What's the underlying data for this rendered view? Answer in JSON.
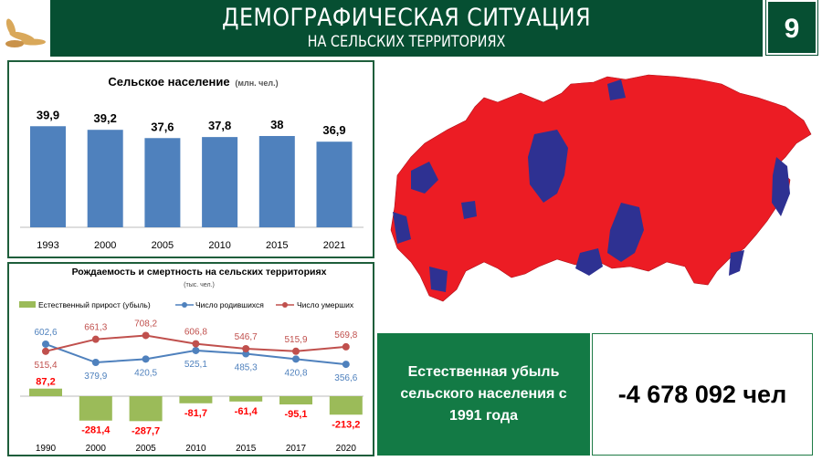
{
  "header": {
    "title": "ДЕМОГРАФИЧЕСКАЯ СИТУАЦИЯ",
    "subtitle": "НА СЕЛЬСКИХ ТЕРРИТОРИЯХ",
    "page_number": "9"
  },
  "chart_data": [
    {
      "type": "bar",
      "title": "Сельское население",
      "unit": "(млн. чел.)",
      "categories": [
        "1993",
        "2000",
        "2005",
        "2010",
        "2015",
        "2021"
      ],
      "values": [
        39.9,
        39.2,
        37.6,
        37.8,
        38,
        36.9
      ],
      "labels": [
        "39,9",
        "39,2",
        "37,6",
        "37,8",
        "38",
        "36,9"
      ],
      "color": "#4f81bd"
    },
    {
      "type": "bar+line",
      "title": "Рождаемость и смертность на сельских территориях",
      "unit": "(тыс. чел.)",
      "categories": [
        "1990",
        "2000",
        "2005",
        "2010",
        "2015",
        "2017",
        "2020"
      ],
      "series": [
        {
          "name": "Естественный прирост (убыль)",
          "type": "bar",
          "color": "#9bbb59",
          "values": [
            87.2,
            -281.4,
            -287.7,
            -81.7,
            -61.4,
            -95.1,
            -213.2
          ],
          "labels": [
            "87,2",
            "-281,4",
            "-287,7",
            "-81,7",
            "-61,4",
            "-95,1",
            "-213,2"
          ]
        },
        {
          "name": "Число родившихся",
          "type": "line",
          "color": "#4f81bd",
          "values": [
            602.6,
            379.9,
            420.5,
            525.1,
            485.3,
            420.8,
            356.6
          ],
          "labels": [
            "602,6",
            "379,9",
            "420,5",
            "525,1",
            "485,3",
            "420,8",
            "356,6"
          ]
        },
        {
          "name": "Число умерших",
          "type": "line",
          "color": "#c0504d",
          "values": [
            515.4,
            661.3,
            708.2,
            606.8,
            546.7,
            515.9,
            569.8
          ],
          "labels": [
            "515,4",
            "661,3",
            "708,2",
            "606,8",
            "546,7",
            "515,9",
            "569,8"
          ]
        }
      ]
    }
  ],
  "summary": {
    "label": "Естественная убыль сельского населения с 1991 года",
    "value": "-4 678 092 чел"
  },
  "map": {
    "colors": {
      "decline": "#ec1c24",
      "growth": "#2e3192"
    }
  }
}
